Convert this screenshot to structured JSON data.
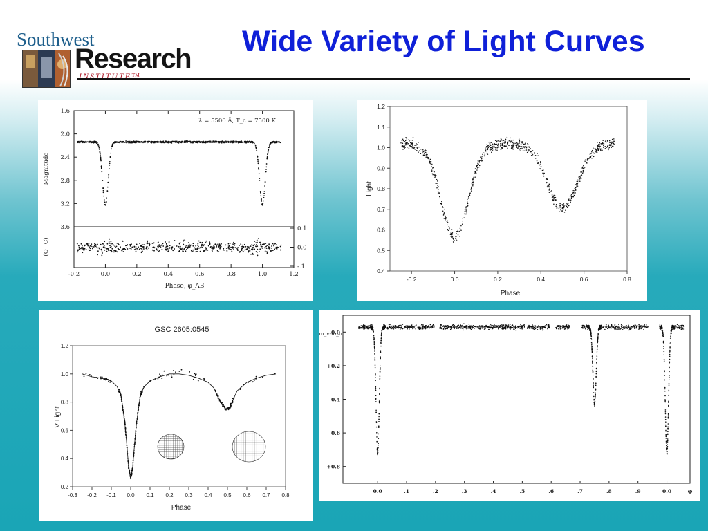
{
  "slide": {
    "title": "Wide Variety of Light Curves",
    "logo": {
      "line1": "Southwest",
      "line2": "Research",
      "line3": "INSTITUTE™"
    },
    "colors": {
      "title": "#0f20d8",
      "background_top": "#ffffff",
      "background_bottom": "#1aa5b6"
    }
  },
  "chart_data": [
    {
      "type": "scatter",
      "annotation": "λ = 5500 Å,  T_c = 7500 K",
      "xlabel": "Phase, φ_AB",
      "ylabel": "Magnitude",
      "ylabel_residual": "(O−C)",
      "xlim": [
        -0.2,
        1.2
      ],
      "ylim": [
        3.6,
        1.6
      ],
      "xticks": [
        "-0.2",
        "0.0",
        "0.2",
        "0.4",
        "0.6",
        "0.8",
        "1.0",
        "1.2"
      ],
      "yticks": [
        "1.6",
        "2.0",
        "2.4",
        "2.8",
        "3.2",
        "3.6"
      ],
      "residual_ticks": [
        "0.1",
        "0.0",
        "-.1"
      ],
      "baseline_magnitude": 2.14,
      "eclipses": [
        {
          "phase": 0.0,
          "min_magnitude": 3.22
        },
        {
          "phase": 1.0,
          "min_magnitude": 3.22
        }
      ]
    },
    {
      "type": "scatter",
      "xlabel": "Phase",
      "ylabel": "Light",
      "xlim": [
        -0.3,
        0.8
      ],
      "ylim": [
        0.4,
        1.2
      ],
      "xticks": [
        "-0.2",
        "0.0",
        "0.2",
        "0.4",
        "0.6",
        "0.8"
      ],
      "yticks": [
        "0.4",
        "0.5",
        "0.6",
        "0.7",
        "0.8",
        "0.9",
        "1.0",
        "1.1",
        "1.2"
      ],
      "minima": [
        {
          "phase": 0.0,
          "light": 0.53
        },
        {
          "phase": 0.5,
          "light": 0.71
        }
      ],
      "maxima": [
        {
          "phase": -0.25,
          "light": 1.02
        },
        {
          "phase": 0.25,
          "light": 1.01
        },
        {
          "phase": 0.75,
          "light": 1.02
        }
      ]
    },
    {
      "type": "line",
      "title": "GSC 2605:0545",
      "xlabel": "Phase",
      "ylabel": "V Light",
      "xlim": [
        -0.3,
        0.8
      ],
      "ylim": [
        0.2,
        1.2
      ],
      "xticks": [
        "-0.3",
        "-0.2",
        "-0.1",
        "0.0",
        "0.1",
        "0.2",
        "0.3",
        "0.4",
        "0.5",
        "0.6",
        "0.7",
        "0.8"
      ],
      "yticks": [
        "0.2",
        "0.4",
        "0.6",
        "0.8",
        "1.0",
        "1.2"
      ],
      "model_curve": {
        "x": [
          -0.25,
          -0.2,
          -0.15,
          -0.1,
          -0.07,
          -0.05,
          -0.03,
          -0.02,
          -0.01,
          0.0,
          0.01,
          0.02,
          0.03,
          0.05,
          0.07,
          0.1,
          0.15,
          0.2,
          0.25,
          0.3,
          0.35,
          0.4,
          0.43,
          0.45,
          0.47,
          0.49,
          0.5,
          0.51,
          0.53,
          0.55,
          0.6,
          0.65,
          0.7,
          0.75
        ],
        "y": [
          1.0,
          0.98,
          0.97,
          0.95,
          0.91,
          0.85,
          0.65,
          0.5,
          0.33,
          0.26,
          0.33,
          0.5,
          0.65,
          0.85,
          0.91,
          0.95,
          0.98,
          1.0,
          1.0,
          0.99,
          0.97,
          0.94,
          0.9,
          0.84,
          0.79,
          0.75,
          0.75,
          0.76,
          0.82,
          0.88,
          0.94,
          0.97,
          0.99,
          1.0
        ]
      }
    },
    {
      "type": "scatter",
      "ylabel": "m_v-m_b",
      "xlim": [
        -0.12,
        1.08
      ],
      "ylim": [
        -0.1,
        0.9
      ],
      "xticks": [
        "0.0",
        ".1",
        ".2",
        ".3",
        ".4",
        ".5",
        ".6",
        ".7",
        ".8",
        ".9",
        "0.0",
        "φ"
      ],
      "yticks": [
        "0.0",
        "+0.2",
        "0.4",
        "0.6",
        "+0.8"
      ],
      "eclipses": [
        {
          "phase": 0.0,
          "depth": 0.75
        },
        {
          "phase": 0.75,
          "depth": 0.46
        },
        {
          "phase": 1.0,
          "depth": 0.75
        }
      ]
    }
  ]
}
